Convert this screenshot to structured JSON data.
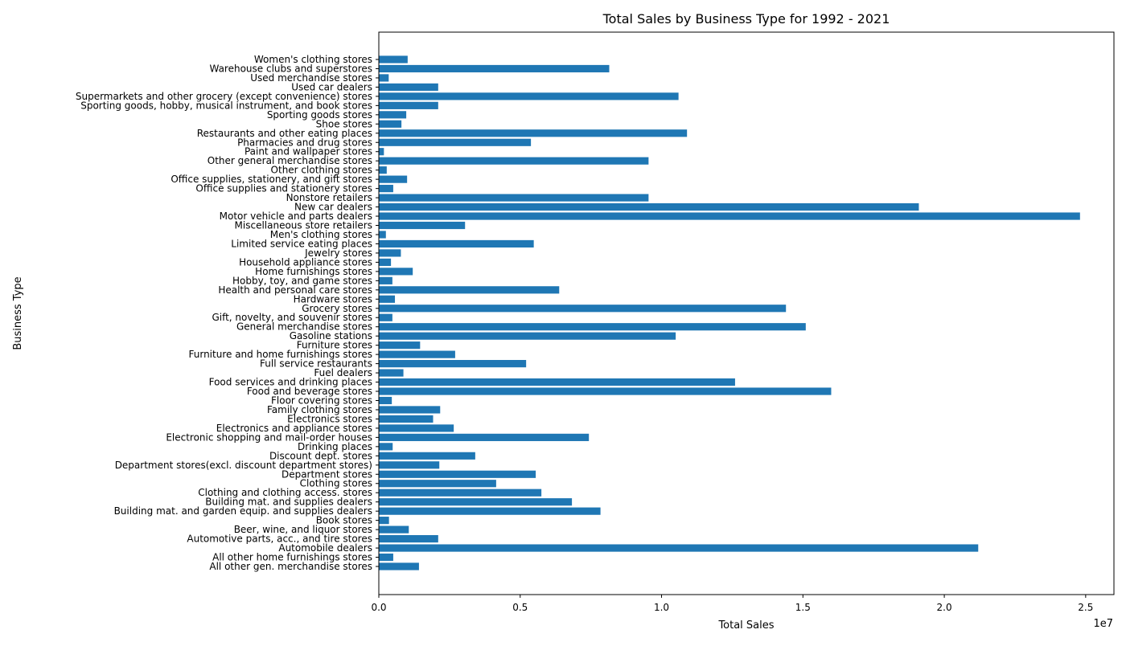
{
  "chart_data": {
    "type": "bar",
    "orientation": "horizontal",
    "title": "Total Sales by Business Type for 1992 - 2021",
    "xlabel": "Total Sales",
    "ylabel": "Business Type",
    "x_scale_label": "1e7",
    "xlim": [
      0,
      26000000
    ],
    "x_ticks": [
      0,
      5000000,
      10000000,
      15000000,
      20000000,
      25000000
    ],
    "x_tick_labels": [
      "0.0",
      "0.5",
      "1.0",
      "1.5",
      "2.0",
      "2.5"
    ],
    "grid": false,
    "bar_color": "#1f77b4",
    "categories": [
      "All other gen. merchandise stores",
      "All other home furnishings stores",
      "Automobile dealers",
      "Automotive parts, acc., and tire stores",
      "Beer, wine, and liquor stores",
      "Book stores",
      "Building mat. and garden equip. and supplies dealers",
      "Building mat. and supplies dealers",
      "Clothing and clothing access. stores",
      "Clothing stores",
      "Department stores",
      "Department stores(excl. discount department stores)",
      "Discount dept. stores",
      "Drinking places",
      "Electronic shopping and mail-order houses",
      "Electronics and appliance stores",
      "Electronics stores",
      "Family clothing stores",
      "Floor covering stores",
      "Food and beverage stores",
      "Food services and drinking places",
      "Fuel dealers",
      "Full service restaurants",
      "Furniture and home furnishings stores",
      "Furniture stores",
      "Gasoline stations",
      "General merchandise stores",
      "Gift, novelty, and souvenir stores",
      "Grocery stores",
      "Hardware stores",
      "Health and personal care stores",
      "Hobby, toy, and game stores",
      "Home furnishings stores",
      "Household appliance stores",
      "Jewelry stores",
      "Limited service eating places",
      "Men's clothing stores",
      "Miscellaneous store retailers",
      "Motor vehicle and parts dealers",
      "New car dealers",
      "Nonstore retailers",
      "Office supplies and stationery stores",
      "Office supplies, stationery, and gift stores",
      "Other clothing stores",
      "Other general merchandise stores",
      "Paint and wallpaper stores",
      "Pharmacies and drug stores",
      "Restaurants and other eating places",
      "Shoe stores",
      "Sporting goods stores",
      "Sporting goods, hobby, musical instrument, and book stores",
      "Supermarkets and other grocery (except convenience) stores",
      "Used car dealers",
      "Used merchandise stores",
      "Warehouse clubs and superstores",
      "Women's clothing stores"
    ],
    "values": [
      1420000,
      510000,
      21200000,
      2100000,
      1060000,
      360000,
      7840000,
      6830000,
      5750000,
      4150000,
      5550000,
      2140000,
      3410000,
      490000,
      7430000,
      2650000,
      1920000,
      2170000,
      460000,
      16000000,
      12600000,
      870000,
      5210000,
      2700000,
      1460000,
      10500000,
      15100000,
      480000,
      14400000,
      570000,
      6380000,
      480000,
      1200000,
      430000,
      780000,
      5480000,
      250000,
      3050000,
      24800000,
      19100000,
      9540000,
      510000,
      1000000,
      280000,
      9540000,
      180000,
      5380000,
      10900000,
      800000,
      970000,
      2100000,
      10600000,
      2100000,
      350000,
      8150000,
      1020000
    ]
  }
}
